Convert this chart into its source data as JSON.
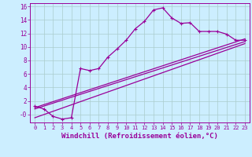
{
  "bg_color": "#cceeff",
  "grid_color": "#aacccc",
  "line_color": "#990099",
  "xlabel": "Windchill (Refroidissement éolien,°C)",
  "xlabel_fontsize": 6.5,
  "tick_fontsize": 5.5,
  "ylim": [
    -1.2,
    16.5
  ],
  "xlim": [
    -0.5,
    23.5
  ],
  "yticks": [
    0,
    2,
    4,
    6,
    8,
    10,
    12,
    14,
    16
  ],
  "ytick_labels": [
    "-0",
    "2",
    "4",
    "6",
    "8",
    "10",
    "12",
    "14",
    "16"
  ],
  "xticks": [
    0,
    1,
    2,
    3,
    4,
    5,
    6,
    7,
    8,
    9,
    10,
    11,
    12,
    13,
    14,
    15,
    16,
    17,
    18,
    19,
    20,
    21,
    22,
    23
  ],
  "series1_x": [
    0,
    1,
    2,
    3,
    4,
    5,
    6,
    7,
    8,
    9,
    10,
    11,
    12,
    13,
    14,
    15,
    16,
    17,
    18,
    19,
    20,
    21,
    22,
    23
  ],
  "series1_y": [
    1.2,
    0.8,
    -0.3,
    -0.7,
    -0.5,
    6.8,
    6.5,
    6.8,
    8.5,
    9.7,
    11.0,
    12.7,
    13.8,
    15.5,
    15.8,
    14.3,
    13.5,
    13.6,
    12.3,
    12.3,
    12.3,
    11.9,
    11.0,
    11.0
  ],
  "line2_x0": 0,
  "line2_y0": 1.0,
  "line2_x1": 23,
  "line2_y1": 11.2,
  "line3_x0": 0,
  "line3_y0": 0.8,
  "line3_x1": 23,
  "line3_y1": 10.8,
  "line4_x0": 0,
  "line4_y0": -0.5,
  "line4_x1": 23,
  "line4_y1": 10.5
}
